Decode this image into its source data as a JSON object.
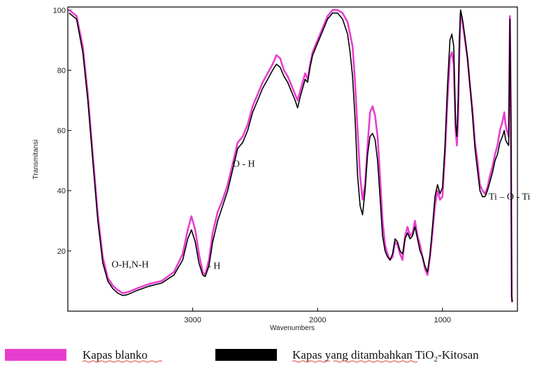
{
  "chart_data": {
    "type": "line",
    "xlabel": "Wavenumbers",
    "ylabel": "Transmitansi",
    "xlim": [
      4000,
      400
    ],
    "ylim": [
      0,
      101
    ],
    "x_ticks": [
      {
        "value": 3000,
        "label": "3000"
      },
      {
        "value": 2000,
        "label": "2000"
      },
      {
        "value": 1000,
        "label": "1000"
      }
    ],
    "y_ticks": [
      {
        "value": 100,
        "label": "100"
      },
      {
        "value": 80,
        "label": "80"
      },
      {
        "value": 60,
        "label": "60"
      },
      {
        "value": 40,
        "label": "40"
      },
      {
        "value": 20,
        "label": "20"
      }
    ],
    "annotations": [
      {
        "text": "O-H,N-H",
        "x": 3650,
        "y": 14.5
      },
      {
        "text": "- H",
        "x": 2880,
        "y": 14
      },
      {
        "text": "O - H",
        "x": 2680,
        "y": 48
      },
      {
        "text": "Ti – O - Ti",
        "x": 630,
        "y": 37
      }
    ],
    "series": [
      {
        "name": "Kapas blanko",
        "color": "#e83ecf",
        "points": [
          [
            3990,
            100
          ],
          [
            3930,
            98
          ],
          [
            3880,
            88
          ],
          [
            3840,
            72
          ],
          [
            3800,
            52
          ],
          [
            3760,
            32
          ],
          [
            3720,
            18
          ],
          [
            3680,
            11
          ],
          [
            3640,
            8.5
          ],
          [
            3600,
            7
          ],
          [
            3560,
            6
          ],
          [
            3520,
            6.3
          ],
          [
            3450,
            7.5
          ],
          [
            3350,
            9
          ],
          [
            3250,
            10
          ],
          [
            3150,
            13
          ],
          [
            3080,
            19
          ],
          [
            3040,
            27
          ],
          [
            3010,
            31.5
          ],
          [
            2980,
            27
          ],
          [
            2950,
            19
          ],
          [
            2920,
            13
          ],
          [
            2900,
            12
          ],
          [
            2870,
            17
          ],
          [
            2840,
            26
          ],
          [
            2800,
            33
          ],
          [
            2760,
            37
          ],
          [
            2720,
            42
          ],
          [
            2680,
            49
          ],
          [
            2640,
            56
          ],
          [
            2600,
            58
          ],
          [
            2560,
            62
          ],
          [
            2520,
            68
          ],
          [
            2480,
            72
          ],
          [
            2440,
            76
          ],
          [
            2400,
            79
          ],
          [
            2360,
            82
          ],
          [
            2330,
            85
          ],
          [
            2300,
            84
          ],
          [
            2270,
            80
          ],
          [
            2240,
            78
          ],
          [
            2210,
            75
          ],
          [
            2180,
            72
          ],
          [
            2160,
            70
          ],
          [
            2140,
            73
          ],
          [
            2120,
            76
          ],
          [
            2100,
            79
          ],
          [
            2080,
            77
          ],
          [
            2060,
            82
          ],
          [
            2040,
            86
          ],
          [
            2000,
            90
          ],
          [
            1960,
            94
          ],
          [
            1920,
            98
          ],
          [
            1880,
            100
          ],
          [
            1840,
            100
          ],
          [
            1800,
            99
          ],
          [
            1760,
            96
          ],
          [
            1740,
            92
          ],
          [
            1720,
            88
          ],
          [
            1700,
            76
          ],
          [
            1680,
            60
          ],
          [
            1660,
            45
          ],
          [
            1640,
            37
          ],
          [
            1620,
            42
          ],
          [
            1600,
            55
          ],
          [
            1580,
            66
          ],
          [
            1560,
            68
          ],
          [
            1540,
            65
          ],
          [
            1520,
            58
          ],
          [
            1500,
            45
          ],
          [
            1480,
            30
          ],
          [
            1460,
            22
          ],
          [
            1440,
            19
          ],
          [
            1420,
            17
          ],
          [
            1400,
            18
          ],
          [
            1380,
            23
          ],
          [
            1360,
            22
          ],
          [
            1340,
            19
          ],
          [
            1320,
            17
          ],
          [
            1300,
            25
          ],
          [
            1280,
            28
          ],
          [
            1260,
            25
          ],
          [
            1240,
            26
          ],
          [
            1220,
            30
          ],
          [
            1200,
            25
          ],
          [
            1180,
            22
          ],
          [
            1160,
            18
          ],
          [
            1140,
            14
          ],
          [
            1120,
            12
          ],
          [
            1100,
            18
          ],
          [
            1080,
            26
          ],
          [
            1060,
            35
          ],
          [
            1040,
            40
          ],
          [
            1020,
            37
          ],
          [
            1000,
            38
          ],
          [
            980,
            52
          ],
          [
            960,
            70
          ],
          [
            940,
            84
          ],
          [
            925,
            86
          ],
          [
            910,
            82
          ],
          [
            895,
            60
          ],
          [
            885,
            55
          ],
          [
            875,
            64
          ],
          [
            865,
            85
          ],
          [
            855,
            99
          ],
          [
            840,
            96
          ],
          [
            820,
            90
          ],
          [
            800,
            84
          ],
          [
            780,
            75
          ],
          [
            760,
            67
          ],
          [
            740,
            56
          ],
          [
            720,
            50
          ],
          [
            700,
            42
          ],
          [
            680,
            40
          ],
          [
            660,
            39
          ],
          [
            640,
            41
          ],
          [
            620,
            45
          ],
          [
            600,
            48
          ],
          [
            580,
            52
          ],
          [
            560,
            55
          ],
          [
            540,
            60
          ],
          [
            520,
            63
          ],
          [
            505,
            66
          ],
          [
            495,
            62
          ],
          [
            485,
            60
          ],
          [
            470,
            58
          ],
          [
            460,
            98
          ],
          [
            452,
            65
          ],
          [
            446,
            5
          ],
          [
            442,
            3
          ]
        ]
      },
      {
        "name": "Kapas yang ditambahkan TiO2-Kitosan",
        "color": "#000000",
        "points": [
          [
            3990,
            99
          ],
          [
            3930,
            97
          ],
          [
            3880,
            86
          ],
          [
            3840,
            70
          ],
          [
            3800,
            50
          ],
          [
            3760,
            30
          ],
          [
            3720,
            16
          ],
          [
            3680,
            10
          ],
          [
            3640,
            7.5
          ],
          [
            3600,
            6
          ],
          [
            3560,
            5.2
          ],
          [
            3520,
            5.5
          ],
          [
            3450,
            6.8
          ],
          [
            3350,
            8.3
          ],
          [
            3250,
            9.3
          ],
          [
            3150,
            12
          ],
          [
            3080,
            17
          ],
          [
            3040,
            24
          ],
          [
            3010,
            27
          ],
          [
            2980,
            23
          ],
          [
            2950,
            16
          ],
          [
            2920,
            12
          ],
          [
            2900,
            11.5
          ],
          [
            2870,
            15
          ],
          [
            2840,
            23
          ],
          [
            2800,
            30
          ],
          [
            2760,
            35
          ],
          [
            2720,
            40
          ],
          [
            2680,
            47
          ],
          [
            2640,
            54
          ],
          [
            2600,
            56
          ],
          [
            2560,
            60
          ],
          [
            2520,
            66
          ],
          [
            2480,
            70
          ],
          [
            2440,
            74
          ],
          [
            2400,
            77
          ],
          [
            2360,
            80
          ],
          [
            2330,
            82
          ],
          [
            2300,
            81
          ],
          [
            2270,
            78
          ],
          [
            2240,
            76
          ],
          [
            2210,
            73
          ],
          [
            2180,
            70
          ],
          [
            2160,
            67.5
          ],
          [
            2140,
            71
          ],
          [
            2120,
            74
          ],
          [
            2100,
            77
          ],
          [
            2080,
            76
          ],
          [
            2060,
            81
          ],
          [
            2040,
            85
          ],
          [
            2000,
            89
          ],
          [
            1960,
            93
          ],
          [
            1920,
            97
          ],
          [
            1880,
            99
          ],
          [
            1840,
            99
          ],
          [
            1800,
            97
          ],
          [
            1760,
            92
          ],
          [
            1740,
            86
          ],
          [
            1720,
            78
          ],
          [
            1700,
            64
          ],
          [
            1680,
            45
          ],
          [
            1660,
            35
          ],
          [
            1640,
            32
          ],
          [
            1620,
            40
          ],
          [
            1600,
            52
          ],
          [
            1580,
            58
          ],
          [
            1560,
            59
          ],
          [
            1540,
            57
          ],
          [
            1520,
            50
          ],
          [
            1500,
            38
          ],
          [
            1480,
            25
          ],
          [
            1460,
            20
          ],
          [
            1440,
            18
          ],
          [
            1420,
            17
          ],
          [
            1400,
            19
          ],
          [
            1380,
            24
          ],
          [
            1360,
            23
          ],
          [
            1340,
            20
          ],
          [
            1320,
            19
          ],
          [
            1300,
            24
          ],
          [
            1280,
            26
          ],
          [
            1260,
            24
          ],
          [
            1240,
            25
          ],
          [
            1220,
            28
          ],
          [
            1200,
            24
          ],
          [
            1180,
            20
          ],
          [
            1160,
            18
          ],
          [
            1140,
            15
          ],
          [
            1120,
            13
          ],
          [
            1100,
            19
          ],
          [
            1080,
            28
          ],
          [
            1060,
            38
          ],
          [
            1040,
            42
          ],
          [
            1020,
            39
          ],
          [
            1000,
            41
          ],
          [
            980,
            55
          ],
          [
            960,
            75
          ],
          [
            940,
            90
          ],
          [
            925,
            92
          ],
          [
            910,
            88
          ],
          [
            895,
            62
          ],
          [
            885,
            58
          ],
          [
            875,
            70
          ],
          [
            865,
            90
          ],
          [
            855,
            100
          ],
          [
            840,
            97
          ],
          [
            820,
            91
          ],
          [
            800,
            84
          ],
          [
            780,
            75
          ],
          [
            760,
            65
          ],
          [
            740,
            54
          ],
          [
            720,
            47
          ],
          [
            700,
            40
          ],
          [
            680,
            38
          ],
          [
            660,
            38
          ],
          [
            640,
            40
          ],
          [
            620,
            43
          ],
          [
            600,
            46
          ],
          [
            580,
            50
          ],
          [
            560,
            52
          ],
          [
            540,
            56
          ],
          [
            520,
            58
          ],
          [
            505,
            60
          ],
          [
            495,
            57
          ],
          [
            485,
            56
          ],
          [
            470,
            55
          ],
          [
            460,
            97
          ],
          [
            452,
            60
          ],
          [
            446,
            5
          ],
          [
            442,
            3
          ]
        ]
      }
    ],
    "legend": {
      "placement": "bottom",
      "items": [
        {
          "text": "Kapas blanko"
        },
        {
          "text_before": "Kapas  yang ditambahkan TiO",
          "sub": "2",
          "text_after": "-Kitosan"
        }
      ]
    }
  }
}
